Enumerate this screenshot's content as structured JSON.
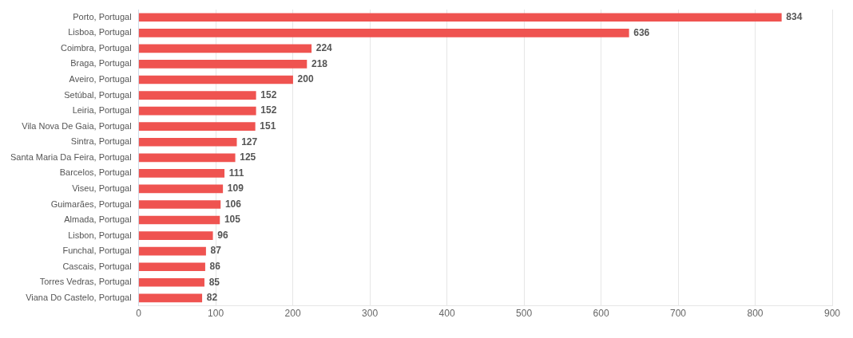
{
  "chart_data": {
    "type": "bar",
    "orientation": "horizontal",
    "categories": [
      "Porto, Portugal",
      "Lisboa, Portugal",
      "Coimbra, Portugal",
      "Braga, Portugal",
      "Aveiro, Portugal",
      "Setúbal, Portugal",
      "Leiria, Portugal",
      "Vila Nova De Gaia, Portugal",
      "Sintra, Portugal",
      "Santa Maria Da Feira, Portugal",
      "Barcelos, Portugal",
      "Viseu, Portugal",
      "Guimarães, Portugal",
      "Almada, Portugal",
      "Lisbon, Portugal",
      "Funchal, Portugal",
      "Cascais, Portugal",
      "Torres Vedras, Portugal",
      "Viana Do Castelo, Portugal"
    ],
    "values": [
      834,
      636,
      224,
      218,
      200,
      152,
      152,
      151,
      127,
      125,
      111,
      109,
      106,
      105,
      96,
      87,
      86,
      85,
      82
    ],
    "color": "#ef5350",
    "xlim": [
      0,
      900
    ],
    "xticks": [
      0,
      100,
      200,
      300,
      400,
      500,
      600,
      700,
      800,
      900
    ],
    "grid": true,
    "data_labels": true
  }
}
